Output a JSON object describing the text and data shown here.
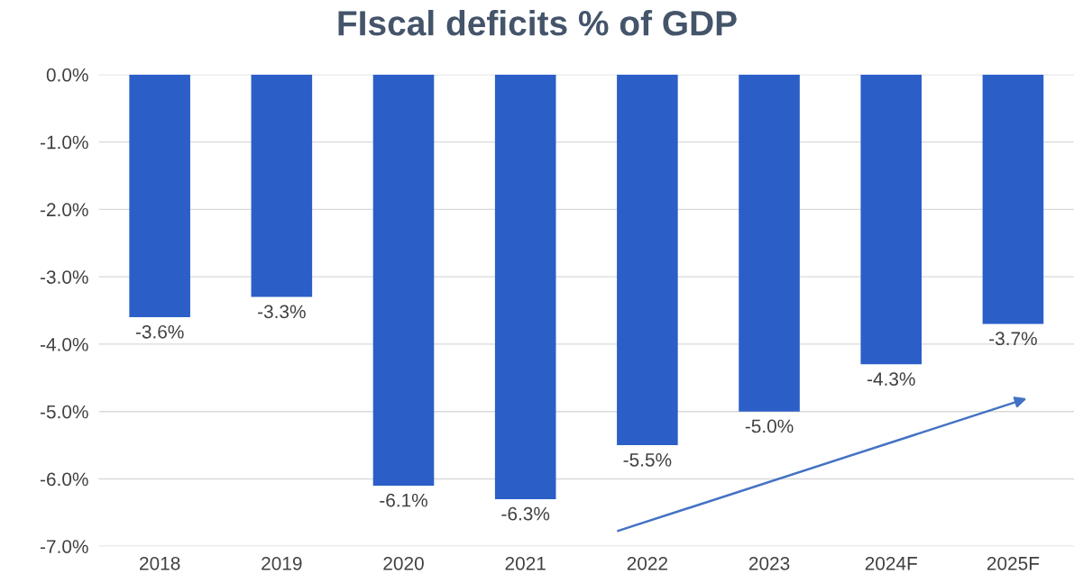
{
  "chart_data": {
    "type": "bar",
    "title": "FIscal deficits % of GDP",
    "categories": [
      "2018",
      "2019",
      "2020",
      "2021",
      "2022",
      "2023",
      "2024F",
      "2025F"
    ],
    "values": [
      -3.6,
      -3.3,
      -6.1,
      -6.3,
      -5.5,
      -5.0,
      -4.3,
      -3.7
    ],
    "value_labels": [
      "-3.6%",
      "-3.3%",
      "-6.1%",
      "-6.3%",
      "-5.5%",
      "-5.0%",
      "-4.3%",
      "-3.7%"
    ],
    "color": "#2b5fc7",
    "ylim": [
      -7,
      0
    ],
    "yticks": [
      {
        "value": 0,
        "label": "0.0%"
      },
      {
        "value": -1,
        "label": "-1.0%"
      },
      {
        "value": -2,
        "label": "-2.0%"
      },
      {
        "value": -3,
        "label": "-3.0%"
      },
      {
        "value": -4,
        "label": "-4.0%"
      },
      {
        "value": -5,
        "label": "-5.0%"
      },
      {
        "value": -6,
        "label": "-6.0%"
      },
      {
        "value": -7,
        "label": "-7.0%"
      }
    ],
    "grid": "y",
    "legend": false
  }
}
